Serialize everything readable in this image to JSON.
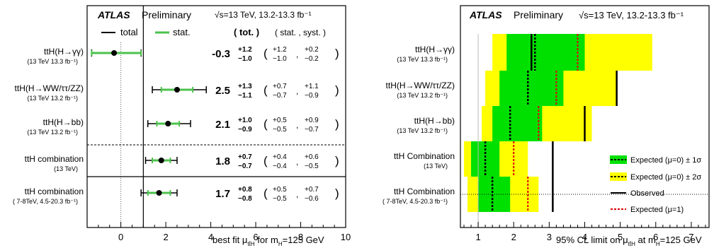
{
  "chart_data": [
    {
      "type": "errorbar",
      "header": {
        "experiment": "ATLAS",
        "status": "Preliminary",
        "energy": "√s=13 TeV, 13.2-13.3 fb⁻¹"
      },
      "legend": {
        "total": "total",
        "stat": "stat."
      },
      "column_headers": {
        "tot": "( tot. )",
        "stat_syst": "( stat. , syst. )"
      },
      "xlabel": "best fit μ",
      "xlabel_sub": "tt̄H",
      "xlabel_suffix": "for m",
      "xlabel_suffix_sub": "H",
      "xlabel_suffix_tail": "=125 GeV",
      "xlim": [
        -1.5,
        10
      ],
      "xticks": [
        "0",
        "2",
        "4",
        "6",
        "8",
        "10"
      ],
      "sm_reference": 1,
      "categories": [
        {
          "label": "ttH(H→γγ)",
          "sublabel": "(13 TeV 13.3 fb⁻¹)",
          "mu": -0.3,
          "mu_text": "-0.3",
          "tot_up": "+1.2",
          "tot_dn": "−1.0",
          "stat_up": "+1.2",
          "stat_dn": "−1.0",
          "syst_up": "+0.2",
          "syst_dn": "−0.2",
          "tot": [
            1.0,
            1.2
          ],
          "stat": [
            1.0,
            1.2
          ]
        },
        {
          "label": "ttH(H→WW/ττ/ZZ)",
          "sublabel": "(13 TeV 13.2 fb⁻¹)",
          "mu": 2.5,
          "mu_text": "2.5",
          "tot_up": "+1.3",
          "tot_dn": "−1.1",
          "stat_up": "+0.7",
          "stat_dn": "−0.7",
          "syst_up": "+1.1",
          "syst_dn": "−0.9",
          "tot": [
            1.1,
            1.3
          ],
          "stat": [
            0.7,
            0.7
          ]
        },
        {
          "label": "ttH(H→bb)",
          "sublabel": "(13 TeV 13.2 fb⁻¹)",
          "mu": 2.1,
          "mu_text": "2.1",
          "tot_up": "+1.0",
          "tot_dn": "−0.9",
          "stat_up": "+0.5",
          "stat_dn": "−0.5",
          "syst_up": "+0.9",
          "syst_dn": "−0.7",
          "tot": [
            0.9,
            1.0
          ],
          "stat": [
            0.5,
            0.5
          ]
        },
        {
          "label": "ttH combination",
          "sublabel": "(13 TeV)",
          "mu": 1.8,
          "mu_text": "1.8",
          "tot_up": "+0.7",
          "tot_dn": "−0.7",
          "stat_up": "+0.4",
          "stat_dn": "−0.4",
          "syst_up": "+0.6",
          "syst_dn": "−0.5",
          "tot": [
            0.7,
            0.7
          ],
          "stat": [
            0.4,
            0.4
          ]
        },
        {
          "label": "ttH combination",
          "sublabel": "( 7-8TeV, 4.5-20.3 fb⁻¹)",
          "mu": 1.7,
          "mu_text": "1.7",
          "tot_up": "+0.8",
          "tot_dn": "−0.8",
          "stat_up": "+0.5",
          "stat_dn": "−0.5",
          "syst_up": "+0.7",
          "syst_dn": "−0.6",
          "tot": [
            0.8,
            0.8
          ],
          "stat": [
            0.5,
            0.5
          ]
        }
      ]
    },
    {
      "type": "limit-bands",
      "header": {
        "experiment": "ATLAS",
        "status": "Preliminary",
        "energy": "√s=13 TeV, 13.2-13.3 fb⁻¹"
      },
      "xlabel": "95% CL limit on μ",
      "xlabel_sub": "tt̄H",
      "xlabel_suffix": "at m",
      "xlabel_suffix_sub": "H",
      "xlabel_suffix_tail": "=125 GeV",
      "xlim": [
        0.5,
        7.5
      ],
      "xticks": [
        "1",
        "2",
        "3",
        "4",
        "5",
        "6",
        "7"
      ],
      "legend": {
        "one_sigma": "Expected (μ=0) ± 1σ",
        "two_sigma": "Expected (μ=0) ± 2σ",
        "observed": "Observed",
        "expected_mu1": "Expected (μ=1)"
      },
      "colors": {
        "one_sigma": "#00e000",
        "two_sigma": "#ffff00",
        "observed": "#000000",
        "expected_mu1": "#e00000"
      },
      "categories": [
        {
          "label": "ttH(H→γγ)",
          "sublabel": "(13 TeV 13.3 fb⁻¹)",
          "band2": [
            1.4,
            5.9
          ],
          "band1": [
            1.8,
            4.0
          ],
          "expected_mu0": 2.6,
          "expected_mu1": 3.8,
          "observed": 2.5
        },
        {
          "label": "ttH(H→WW/ττ/ZZ)",
          "sublabel": "(13 TeV 13.2 fb⁻¹)",
          "band2": [
            1.2,
            4.9
          ],
          "band1": [
            1.6,
            3.4
          ],
          "expected_mu0": 2.4,
          "expected_mu1": 3.2,
          "observed": 4.9
        },
        {
          "label": "ttH(H→bb)",
          "sublabel": "(13 TeV 13.2 fb⁻¹)",
          "band2": [
            1.1,
            4.2
          ],
          "band1": [
            1.4,
            2.8
          ],
          "expected_mu0": 1.9,
          "expected_mu1": 2.7,
          "observed": 4.0
        },
        {
          "label": "ttH Combination",
          "sublabel": "(13 TeV)",
          "band2": [
            0.6,
            2.4
          ],
          "band1": [
            0.8,
            1.6
          ],
          "expected_mu0": 1.2,
          "expected_mu1": 2.0,
          "observed": 3.1
        },
        {
          "label": "ttH Combination",
          "sublabel": "( 7-8TeV, 4.5-20.3 fb⁻¹)",
          "band2": [
            0.7,
            2.7
          ],
          "band1": [
            1.0,
            1.9
          ],
          "expected_mu0": 1.4,
          "expected_mu1": 2.4,
          "observed": 3.1
        }
      ]
    }
  ]
}
